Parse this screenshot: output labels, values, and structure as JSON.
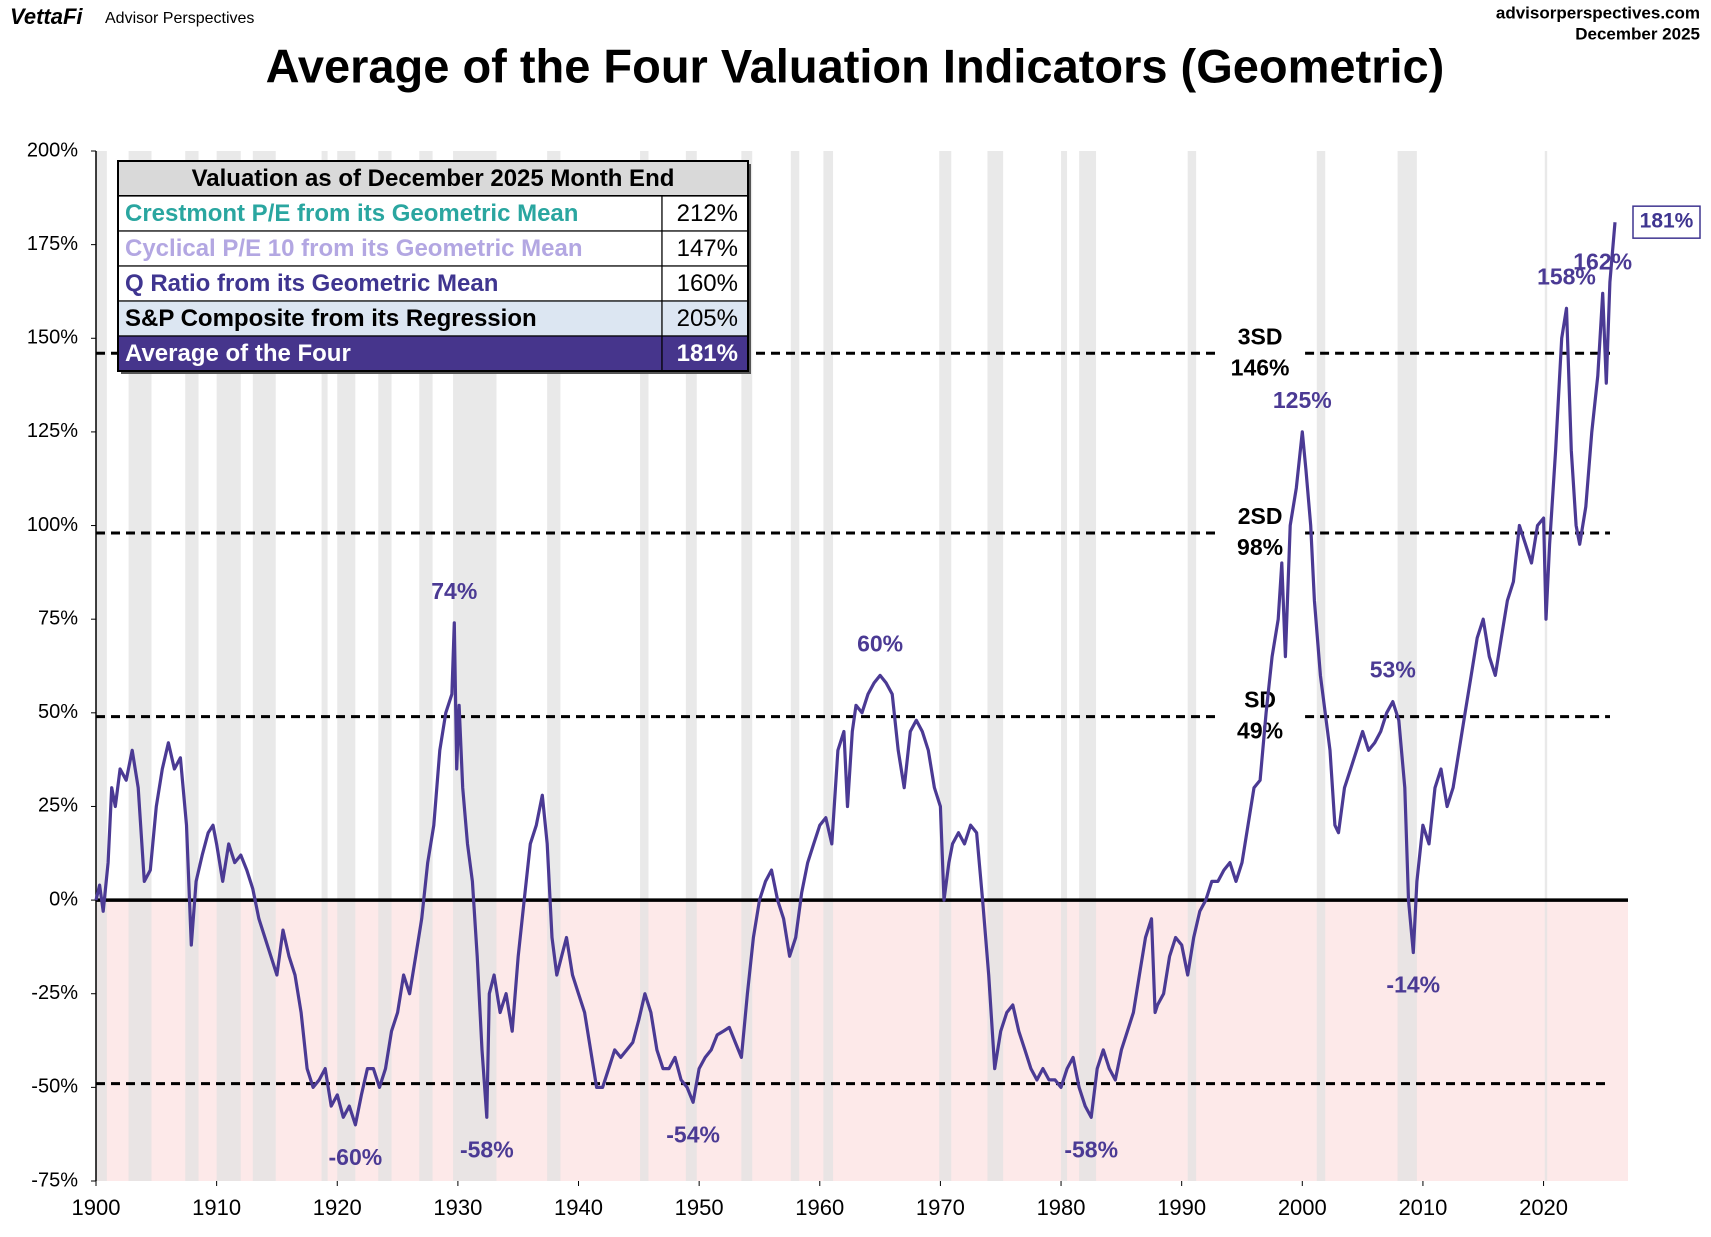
{
  "header": {
    "brand": "VettaFi",
    "brand_sub": "Advisor Perspectives",
    "site": "advisorperspectives.com",
    "date": "December 2025"
  },
  "chart_data": {
    "type": "line",
    "title": "Average of the Four Valuation Indicators (Geometric)",
    "color": "#4b3a94",
    "xlim": [
      1900,
      2027
    ],
    "ylim": [
      -75,
      200
    ],
    "xticks": [
      1900,
      1910,
      1920,
      1930,
      1940,
      1950,
      1960,
      1970,
      1980,
      1990,
      2000,
      2010,
      2020
    ],
    "yticks": [
      {
        "value": -75,
        "label": "-75%"
      },
      {
        "value": -50,
        "label": "-50%"
      },
      {
        "value": -25,
        "label": "-25%"
      },
      {
        "value": 0,
        "label": "0%"
      },
      {
        "value": 25,
        "label": "25%"
      },
      {
        "value": 50,
        "label": "50%"
      },
      {
        "value": 75,
        "label": "75%"
      },
      {
        "value": 100,
        "label": "100%"
      },
      {
        "value": 125,
        "label": "125%"
      },
      {
        "value": 150,
        "label": "150%"
      },
      {
        "value": 175,
        "label": "175%"
      },
      {
        "value": 200,
        "label": "200%"
      }
    ],
    "negative_shading": "#fde9e9",
    "recession_color": "#e2e2e2",
    "recessions": [
      [
        1899.5,
        1900.9
      ],
      [
        1902.7,
        1904.6
      ],
      [
        1907.4,
        1908.5
      ],
      [
        1910.0,
        1912.0
      ],
      [
        1913.0,
        1914.9
      ],
      [
        1918.7,
        1919.2
      ],
      [
        1920.0,
        1921.5
      ],
      [
        1923.4,
        1924.5
      ],
      [
        1926.8,
        1927.9
      ],
      [
        1929.6,
        1933.2
      ],
      [
        1937.4,
        1938.5
      ],
      [
        1945.1,
        1945.8
      ],
      [
        1948.9,
        1949.8
      ],
      [
        1953.5,
        1954.4
      ],
      [
        1957.6,
        1958.3
      ],
      [
        1960.3,
        1961.1
      ],
      [
        1969.9,
        1970.9
      ],
      [
        1973.9,
        1975.2
      ],
      [
        1980.0,
        1980.5
      ],
      [
        1981.5,
        1982.9
      ],
      [
        1990.5,
        1991.2
      ],
      [
        2001.2,
        2001.9
      ],
      [
        2007.9,
        2009.5
      ],
      [
        2020.1,
        2020.3
      ]
    ],
    "reference_lines": [
      {
        "value": 146,
        "label": "3SD",
        "value_label": "146%"
      },
      {
        "value": 98,
        "label": "2SD",
        "value_label": "98%"
      },
      {
        "value": 49,
        "label": "SD",
        "value_label": "49%"
      },
      {
        "value": -49
      }
    ],
    "x": [
      1900,
      1900.3,
      1900.6,
      1901,
      1901.3,
      1901.6,
      1902,
      1902.5,
      1903,
      1903.5,
      1904,
      1904.5,
      1905,
      1905.5,
      1906,
      1906.5,
      1907,
      1907.5,
      1907.9,
      1908.3,
      1908.8,
      1909.3,
      1909.7,
      1910,
      1910.5,
      1911,
      1911.5,
      1912,
      1912.5,
      1913,
      1913.5,
      1914,
      1914.5,
      1915,
      1915.5,
      1916,
      1916.5,
      1917,
      1917.5,
      1918,
      1918.5,
      1919,
      1919.5,
      1920,
      1920.5,
      1921,
      1921.5,
      1922,
      1922.5,
      1923,
      1923.5,
      1924,
      1924.5,
      1925,
      1925.5,
      1926,
      1926.5,
      1927,
      1927.5,
      1928,
      1928.5,
      1929,
      1929.5,
      1929.7,
      1929.9,
      1930.1,
      1930.4,
      1930.8,
      1931.2,
      1931.6,
      1932,
      1932.4,
      1932.6,
      1933,
      1933.5,
      1934,
      1934.5,
      1935,
      1935.5,
      1936,
      1936.5,
      1937,
      1937.4,
      1937.8,
      1938.2,
      1938.6,
      1939,
      1939.5,
      1940,
      1940.5,
      1941,
      1941.5,
      1942,
      1942.5,
      1943,
      1943.5,
      1944,
      1944.5,
      1945,
      1945.5,
      1946,
      1946.5,
      1947,
      1947.5,
      1948,
      1948.5,
      1949,
      1949.5,
      1950,
      1950.5,
      1951,
      1951.5,
      1952,
      1952.5,
      1953,
      1953.5,
      1954,
      1954.5,
      1955,
      1955.5,
      1956,
      1956.5,
      1957,
      1957.5,
      1958,
      1958.5,
      1959,
      1959.5,
      1960,
      1960.5,
      1961,
      1961.5,
      1962,
      1962.3,
      1962.7,
      1963,
      1963.5,
      1964,
      1964.5,
      1965,
      1965.5,
      1966,
      1966.5,
      1967,
      1967.5,
      1968,
      1968.5,
      1969,
      1969.5,
      1970,
      1970.3,
      1970.7,
      1971,
      1971.5,
      1972,
      1972.5,
      1973,
      1973.5,
      1974,
      1974.5,
      1975,
      1975.5,
      1976,
      1976.5,
      1977,
      1977.5,
      1978,
      1978.5,
      1979,
      1979.5,
      1980,
      1980.5,
      1981,
      1981.5,
      1982,
      1982.5,
      1983,
      1983.5,
      1984,
      1984.5,
      1985,
      1985.5,
      1986,
      1986.5,
      1987,
      1987.5,
      1987.8,
      1988,
      1988.5,
      1989,
      1989.5,
      1990,
      1990.5,
      1991,
      1991.5,
      1992,
      1992.5,
      1993,
      1993.5,
      1994,
      1994.5,
      1995,
      1995.5,
      1996,
      1996.5,
      1997,
      1997.5,
      1998,
      1998.3,
      1998.6,
      1999,
      1999.5,
      2000,
      2000.3,
      2000.7,
      2001,
      2001.5,
      2001.9,
      2002.3,
      2002.7,
      2003,
      2003.5,
      2004,
      2004.5,
      2005,
      2005.5,
      2006,
      2006.5,
      2007,
      2007.5,
      2008,
      2008.5,
      2008.8,
      2009.2,
      2009.5,
      2010,
      2010.5,
      2011,
      2011.5,
      2012,
      2012.5,
      2013,
      2013.5,
      2014,
      2014.5,
      2015,
      2015.5,
      2016,
      2016.5,
      2017,
      2017.5,
      2018,
      2018.5,
      2019,
      2019.5,
      2020,
      2020.2,
      2020.5,
      2021,
      2021.5,
      2021.9,
      2022.3,
      2022.7,
      2023,
      2023.5,
      2024,
      2024.5,
      2024.9,
      2025.2,
      2025.5,
      2025.92
    ],
    "values": [
      0,
      4,
      -3,
      10,
      30,
      25,
      35,
      32,
      40,
      30,
      5,
      8,
      25,
      35,
      42,
      35,
      38,
      20,
      -12,
      5,
      12,
      18,
      20,
      15,
      5,
      15,
      10,
      12,
      8,
      3,
      -5,
      -10,
      -15,
      -20,
      -8,
      -15,
      -20,
      -30,
      -45,
      -50,
      -48,
      -45,
      -55,
      -52,
      -58,
      -55,
      -60,
      -52,
      -45,
      -45,
      -50,
      -45,
      -35,
      -30,
      -20,
      -25,
      -15,
      -5,
      10,
      20,
      40,
      50,
      55,
      74,
      35,
      52,
      30,
      15,
      5,
      -15,
      -40,
      -58,
      -25,
      -20,
      -30,
      -25,
      -35,
      -15,
      0,
      15,
      20,
      28,
      15,
      -10,
      -20,
      -15,
      -10,
      -20,
      -25,
      -30,
      -40,
      -50,
      -50,
      -45,
      -40,
      -42,
      -40,
      -38,
      -32,
      -25,
      -30,
      -40,
      -45,
      -45,
      -42,
      -48,
      -50,
      -54,
      -45,
      -42,
      -40,
      -36,
      -35,
      -34,
      -38,
      -42,
      -25,
      -10,
      0,
      5,
      8,
      0,
      -5,
      -15,
      -10,
      2,
      10,
      15,
      20,
      22,
      15,
      40,
      45,
      25,
      45,
      52,
      50,
      55,
      58,
      60,
      58,
      55,
      40,
      30,
      45,
      48,
      45,
      40,
      30,
      25,
      0,
      10,
      15,
      18,
      15,
      20,
      18,
      0,
      -20,
      -45,
      -35,
      -30,
      -28,
      -35,
      -40,
      -45,
      -48,
      -45,
      -48,
      -48,
      -50,
      -45,
      -42,
      -50,
      -55,
      -58,
      -45,
      -40,
      -45,
      -48,
      -40,
      -35,
      -30,
      -20,
      -10,
      -5,
      -30,
      -28,
      -25,
      -15,
      -10,
      -12,
      -20,
      -10,
      -3,
      0,
      5,
      5,
      8,
      10,
      5,
      10,
      20,
      30,
      32,
      50,
      65,
      75,
      90,
      65,
      100,
      110,
      125,
      115,
      100,
      80,
      60,
      50,
      40,
      20,
      18,
      30,
      35,
      40,
      45,
      40,
      42,
      45,
      50,
      53,
      48,
      30,
      0,
      -14,
      5,
      20,
      15,
      30,
      35,
      25,
      30,
      40,
      50,
      60,
      70,
      75,
      65,
      60,
      70,
      80,
      85,
      100,
      95,
      90,
      100,
      102,
      75,
      95,
      120,
      150,
      158,
      120,
      100,
      95,
      105,
      125,
      140,
      162,
      138,
      165,
      181
    ],
    "annotations": [
      {
        "text": "74%",
        "x": 1929.7,
        "y": 74,
        "position": "above"
      },
      {
        "text": "60%",
        "x": 1965,
        "y": 60,
        "position": "above"
      },
      {
        "text": "125%",
        "x": 2000,
        "y": 125,
        "position": "above"
      },
      {
        "text": "53%",
        "x": 2007.5,
        "y": 53,
        "position": "above"
      },
      {
        "text": "158%",
        "x": 2021.9,
        "y": 158,
        "position": "above"
      },
      {
        "text": "162%",
        "x": 2024.9,
        "y": 162,
        "position": "above"
      },
      {
        "text": "-60%",
        "x": 1921.5,
        "y": -60,
        "position": "below"
      },
      {
        "text": "-58%",
        "x": 1932.4,
        "y": -58,
        "position": "below"
      },
      {
        "text": "-54%",
        "x": 1949.5,
        "y": -54,
        "position": "below"
      },
      {
        "text": "-58%",
        "x": 1982.5,
        "y": -58,
        "position": "below"
      },
      {
        "text": "-14%",
        "x": 2009.2,
        "y": -14,
        "position": "below"
      },
      {
        "text": "181%",
        "x": 2025.92,
        "y": 181,
        "position": "right"
      }
    ],
    "table": {
      "title": "Valuation as of December 2025 Month End",
      "header_background": "#d9d9d9",
      "rows": [
        {
          "name": "Crestmont P/E from its Geometric Mean",
          "value": "212%",
          "color": "#2aa6a0",
          "background": "#ffffff"
        },
        {
          "name": "Cyclical P/E 10 from its Geometric Mean",
          "value": "147%",
          "color": "#b3a7e2",
          "background": "#ffffff"
        },
        {
          "name": "Q Ratio from its Geometric Mean",
          "value": "160%",
          "color": "#3f3590",
          "background": "#ffffff"
        },
        {
          "name": "S&P Composite from its Regression",
          "value": "205%",
          "color": "#000000",
          "background": "#dce6f2"
        },
        {
          "name": "Average of the Four",
          "value": "181%",
          "color": "#ffffff",
          "background": "#46358c"
        }
      ]
    }
  }
}
